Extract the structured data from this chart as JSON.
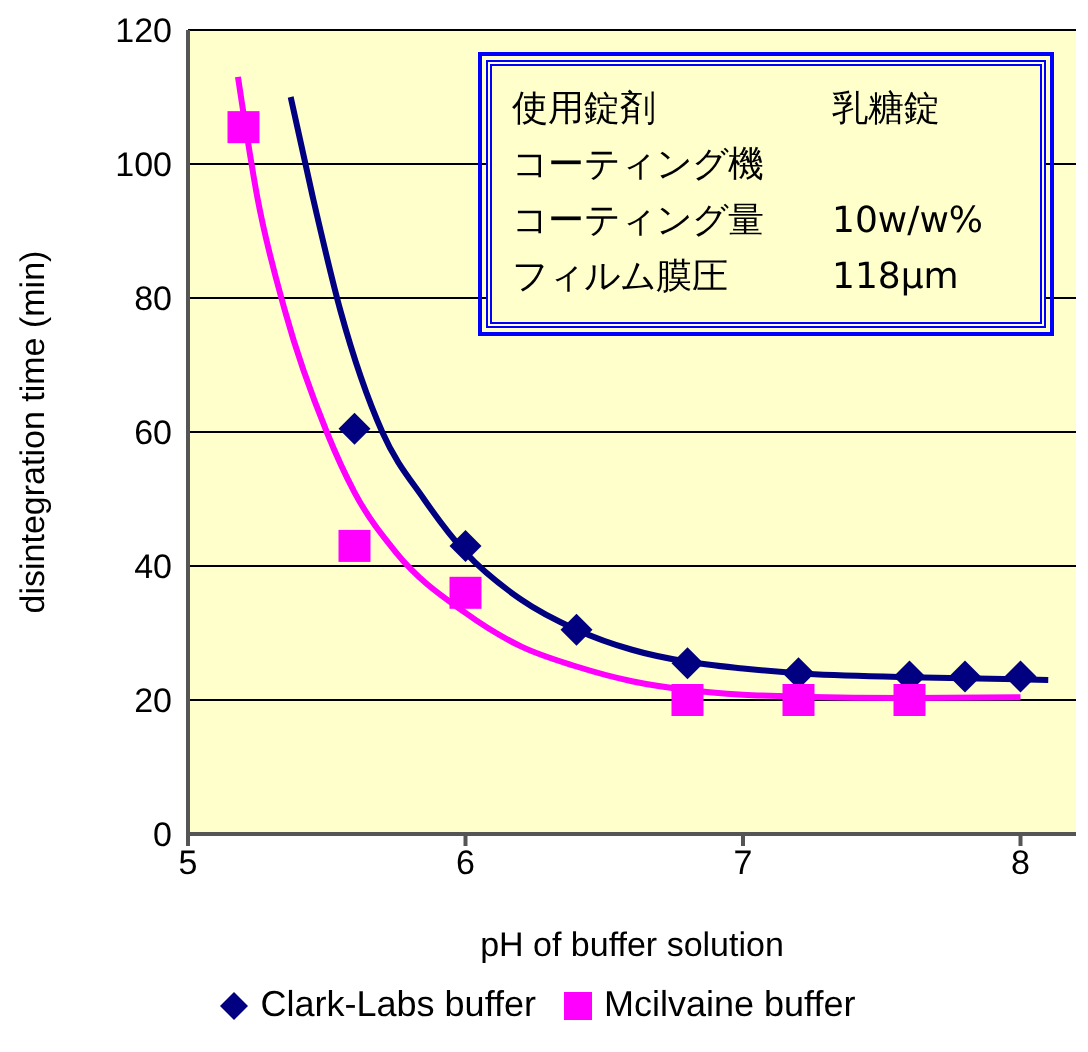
{
  "chart_data": {
    "type": "scatter",
    "xlabel": "pH of buffer solution",
    "ylabel": "disintegration time (min)",
    "xlim": [
      5,
      8.2
    ],
    "xticks": [
      5,
      6,
      7,
      8
    ],
    "ylim": [
      0,
      120
    ],
    "yticks": [
      0,
      20,
      40,
      60,
      80,
      100,
      120
    ],
    "grid": "y",
    "legend": "bottom",
    "annotations": [
      "使用錠剤\t乳糖錠",
      "コーティング機",
      "コーティング量\t10w/w%",
      "フィルム膜圧\t118μm"
    ],
    "series": [
      {
        "name": "Clark-Labs buffer",
        "marker": "diamond",
        "color": "#000080",
        "x": [
          5.6,
          6.0,
          6.4,
          6.8,
          7.2,
          7.6,
          7.8,
          8.0
        ],
        "values": [
          60.5,
          43,
          30.5,
          25.5,
          24,
          23.5,
          23.5,
          23.5
        ]
      },
      {
        "name": "Mcilvaine buffer",
        "marker": "square",
        "color": "#ff00ff",
        "x": [
          5.2,
          5.6,
          6.0,
          6.8,
          7.2,
          7.6
        ],
        "values": [
          105.5,
          43,
          36,
          20,
          20,
          20
        ]
      },
      {
        "type": "line",
        "color": "#000080",
        "marker": "none",
        "x": [
          5.37,
          5.45,
          5.55,
          5.7,
          5.85,
          6.0,
          6.2,
          6.4,
          6.6,
          6.8,
          7.0,
          7.2,
          7.6,
          8.1
        ],
        "values": [
          110,
          95,
          78,
          60,
          50,
          42,
          35,
          30.5,
          27.5,
          25.7,
          24.7,
          24,
          23.4,
          23
        ]
      },
      {
        "type": "line",
        "color": "#ff00ff",
        "marker": "none",
        "x": [
          5.18,
          5.25,
          5.35,
          5.5,
          5.6,
          5.75,
          6.0,
          6.2,
          6.4,
          6.6,
          6.8,
          7.0,
          7.2,
          7.6,
          8.0
        ],
        "values": [
          113,
          95,
          78,
          60,
          51,
          42,
          33,
          28,
          25,
          22.8,
          21.5,
          20.8,
          20.5,
          20.3,
          20.4
        ]
      }
    ]
  }
}
